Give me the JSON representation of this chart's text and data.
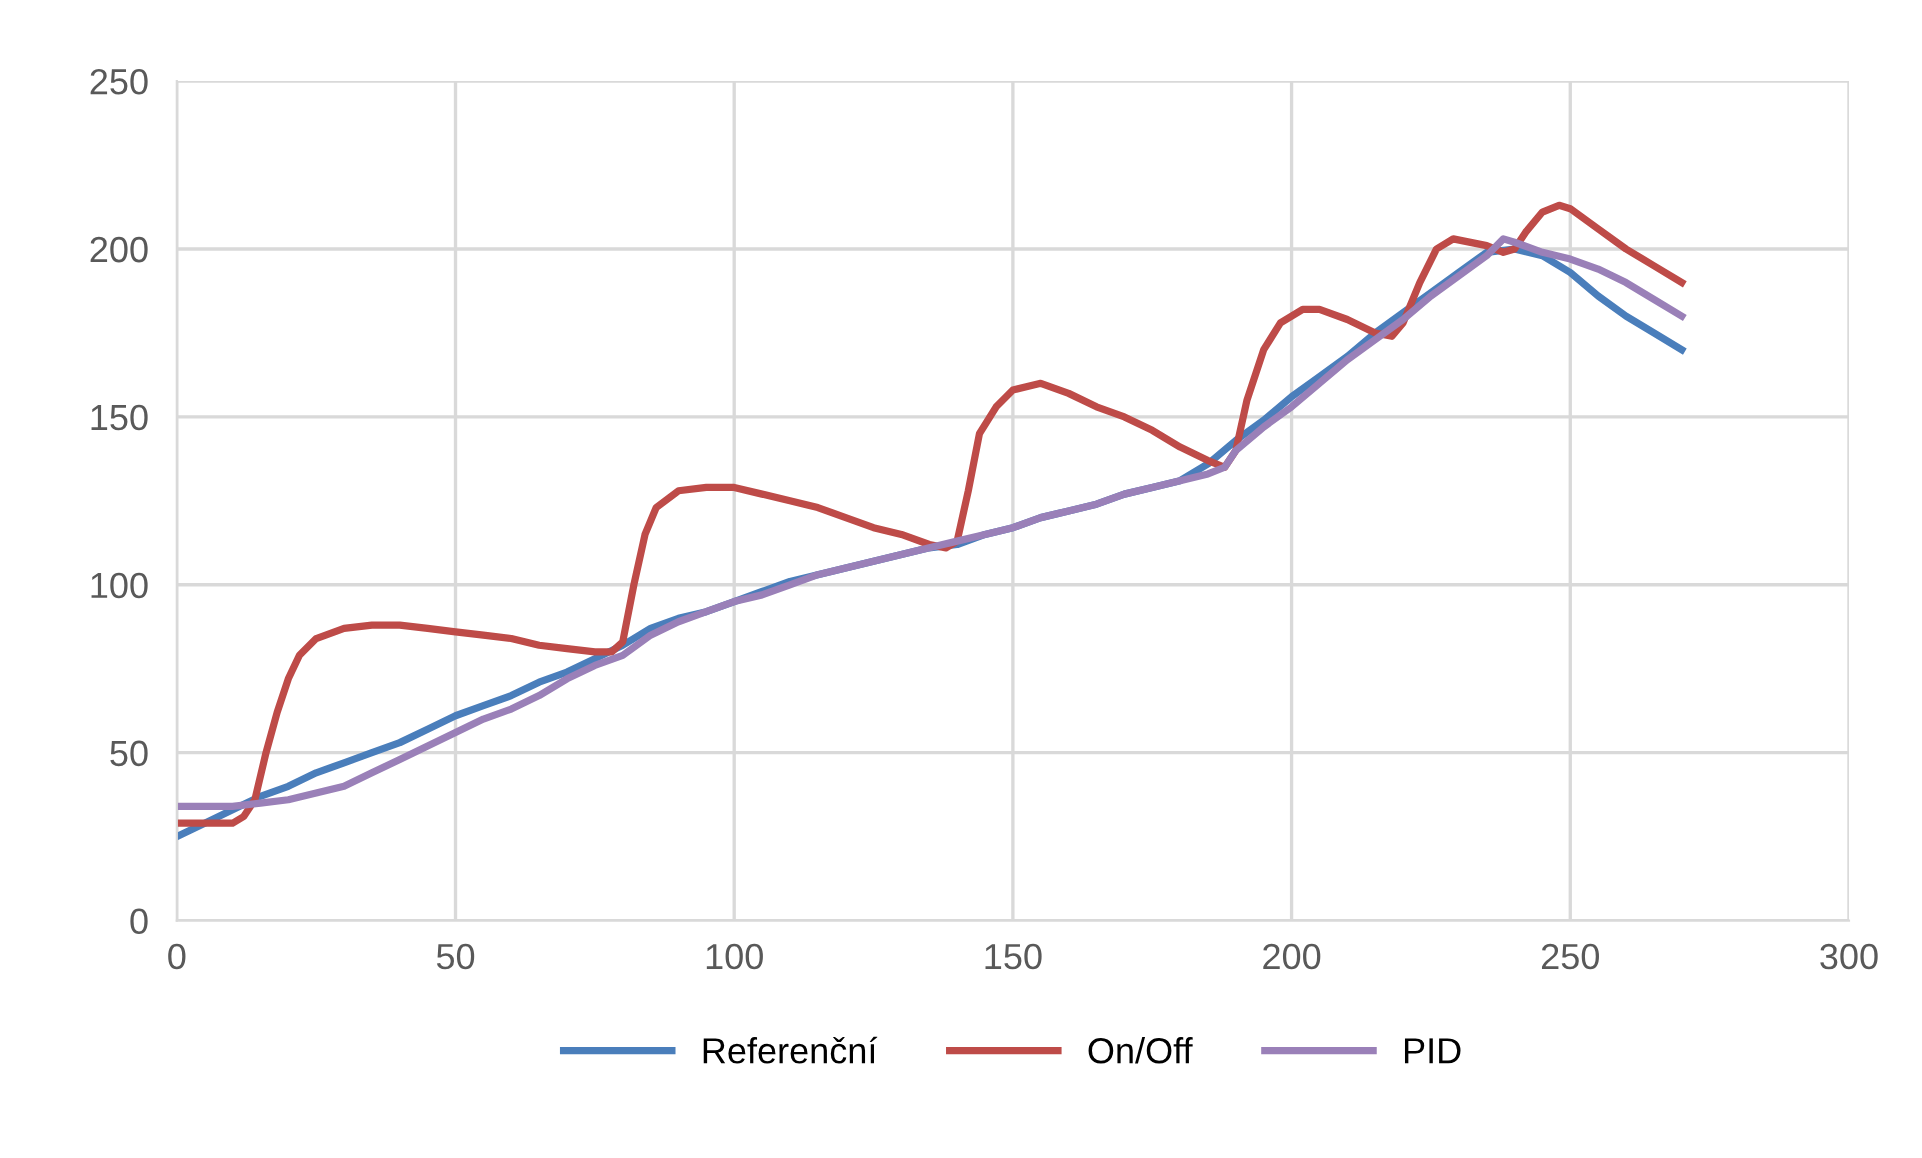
{
  "chart_data": {
    "type": "line",
    "xlim": [
      0,
      300
    ],
    "ylim": [
      0,
      250
    ],
    "xticks": [
      0,
      50,
      100,
      150,
      200,
      250,
      300
    ],
    "yticks": [
      0,
      50,
      100,
      150,
      200,
      250
    ],
    "grid": true,
    "legend": "bottom",
    "marker": "none",
    "line_style": "solid",
    "series": [
      {
        "name": "Referenční",
        "color": "#4a7ebb",
        "x": [
          0,
          5,
          10,
          15,
          20,
          25,
          30,
          35,
          40,
          45,
          50,
          55,
          60,
          65,
          70,
          75,
          80,
          85,
          90,
          95,
          100,
          105,
          110,
          115,
          120,
          125,
          130,
          135,
          140,
          145,
          150,
          155,
          160,
          165,
          170,
          175,
          180,
          185,
          190,
          195,
          200,
          205,
          210,
          215,
          220,
          225,
          230,
          235,
          240,
          245,
          250,
          255,
          260,
          265,
          270
        ],
        "values": [
          25,
          29,
          33,
          37,
          40,
          44,
          47,
          50,
          53,
          57,
          61,
          64,
          67,
          71,
          74,
          78,
          82,
          87,
          90,
          92,
          95,
          98,
          101,
          103,
          105,
          107,
          109,
          111,
          112,
          115,
          117,
          120,
          122,
          124,
          127,
          129,
          131,
          136,
          143,
          149,
          156,
          162,
          168,
          175,
          181,
          187,
          193,
          199,
          200,
          198,
          193,
          186,
          180,
          175,
          170
        ]
      },
      {
        "name": "On/Off",
        "color": "#be4b48",
        "x": [
          0,
          5,
          10,
          12,
          14,
          16,
          18,
          20,
          22,
          25,
          30,
          35,
          40,
          45,
          50,
          55,
          60,
          65,
          70,
          75,
          78,
          80,
          82,
          84,
          86,
          90,
          95,
          100,
          105,
          110,
          115,
          120,
          125,
          130,
          135,
          138,
          140,
          142,
          144,
          147,
          150,
          155,
          160,
          165,
          170,
          175,
          180,
          185,
          188,
          190,
          192,
          195,
          198,
          202,
          205,
          210,
          215,
          218,
          220,
          223,
          226,
          229,
          235,
          238,
          240,
          242,
          245,
          248,
          250,
          255,
          260,
          265,
          270
        ],
        "values": [
          29,
          29,
          29,
          31,
          36,
          50,
          62,
          72,
          79,
          84,
          87,
          88,
          88,
          87,
          86,
          85,
          84,
          82,
          81,
          80,
          80,
          83,
          100,
          115,
          123,
          128,
          129,
          129,
          127,
          125,
          123,
          120,
          117,
          115,
          112,
          111,
          113,
          128,
          145,
          153,
          158,
          160,
          157,
          153,
          150,
          146,
          141,
          137,
          135,
          140,
          155,
          170,
          178,
          182,
          182,
          179,
          175,
          174,
          178,
          190,
          200,
          203,
          201,
          199,
          200,
          205,
          211,
          213,
          212,
          206,
          200,
          195,
          190
        ]
      },
      {
        "name": "PID",
        "color": "#9a80b8",
        "x": [
          0,
          5,
          10,
          15,
          20,
          25,
          30,
          35,
          40,
          45,
          50,
          55,
          60,
          65,
          70,
          75,
          80,
          85,
          90,
          95,
          100,
          105,
          110,
          115,
          120,
          125,
          130,
          135,
          140,
          145,
          150,
          155,
          160,
          165,
          170,
          175,
          180,
          185,
          188,
          190,
          195,
          200,
          205,
          210,
          215,
          220,
          225,
          230,
          235,
          238,
          240,
          245,
          250,
          255,
          260,
          265,
          270
        ],
        "values": [
          34,
          34,
          34,
          35,
          36,
          38,
          40,
          44,
          48,
          52,
          56,
          60,
          63,
          67,
          72,
          76,
          79,
          85,
          89,
          92,
          95,
          97,
          100,
          103,
          105,
          107,
          109,
          111,
          113,
          115,
          117,
          120,
          122,
          124,
          127,
          129,
          131,
          133,
          135,
          140,
          147,
          153,
          160,
          167,
          173,
          179,
          186,
          192,
          198,
          203,
          202,
          199,
          197,
          194,
          190,
          185,
          180
        ]
      }
    ]
  }
}
